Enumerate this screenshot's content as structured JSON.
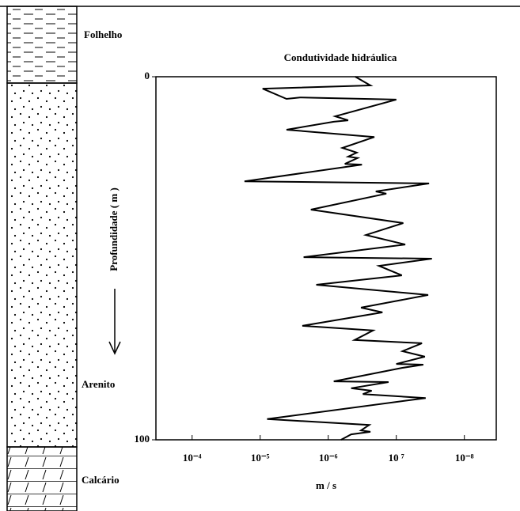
{
  "chart_data": {
    "type": "line",
    "title": "Condutividade hidráulica",
    "x_label": "m / s",
    "y_label": "Profundidade  ( m )",
    "lithology": [
      "Folhelho",
      "Arenito",
      "Calcário"
    ],
    "x_scale": "log",
    "color": "#000000",
    "xlim": [
      0.00034,
      3.4e-09
    ],
    "xticks": [
      {
        "value": 0.0001,
        "label": "10⁻⁴"
      },
      {
        "value": 1e-05,
        "label": "10⁻⁵"
      },
      {
        "value": 1e-06,
        "label": "10⁻⁶"
      },
      {
        "value": 1e-07,
        "label": "10 ⁷"
      },
      {
        "value": 1e-08,
        "label": "10⁻⁸"
      }
    ],
    "ylim": [
      0,
      100
    ],
    "yticks": [
      0,
      100
    ],
    "y_inverted": true,
    "x": [
      4e-07,
      2.4e-07,
      9.2e-06,
      4.1e-06,
      2.6e-06,
      1e-07,
      7.9e-07,
      5.1e-07,
      8.3e-07,
      4.1e-06,
      2.1e-07,
      6.2e-07,
      3.8e-07,
      5.1e-07,
      3.7e-07,
      5.7e-07,
      3.2e-07,
      1.7e-05,
      3.3e-08,
      2e-07,
      1.4e-07,
      1.8e-06,
      7.9e-08,
      2.8e-07,
      7.4e-08,
      2.3e-06,
      3e-08,
      1.8e-07,
      8.3e-08,
      1.5e-06,
      3.4e-08,
      3.3e-07,
      1.6e-07,
      2.4e-06,
      2.2e-07,
      4.1e-07,
      4.2e-08,
      8.1e-08,
      3.8e-08,
      1e-07,
      4e-08,
      8.3e-08,
      8.3e-07,
      1.3e-07,
      4.6e-07,
      2.3e-07,
      3.1e-07,
      3.7e-08,
      7.9e-06,
      2.5e-07,
      3.3e-07,
      2.4e-07,
      4.6e-07,
      6.5e-07
    ],
    "values": [
      0,
      2.4,
      3.3,
      6.1,
      5.7,
      6.3,
      10.9,
      12.0,
      12.4,
      14.6,
      16.6,
      19.6,
      20.9,
      22.0,
      22.4,
      24.0,
      24.2,
      28.8,
      29.4,
      31.6,
      32.2,
      36.6,
      40.3,
      43.6,
      46.2,
      49.7,
      50.1,
      52.1,
      54.7,
      57.3,
      60.1,
      63.6,
      64.9,
      68.6,
      69.9,
      72.5,
      73.4,
      75.6,
      77.1,
      79.1,
      79.3,
      80.2,
      83.9,
      84.1,
      85.8,
      86.5,
      87.4,
      88.5,
      94.3,
      95.9,
      97.4,
      97.8,
      98.5,
      100
    ]
  }
}
